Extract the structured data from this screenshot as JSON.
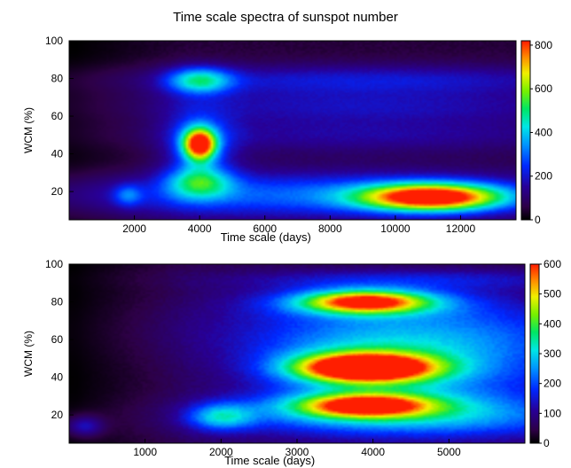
{
  "figure": {
    "title": "Time scale spectra of sunspot number"
  },
  "chart_data": [
    {
      "type": "heatmap",
      "title": "",
      "xlabel": "Time scale (days)",
      "ylabel": "WCM (%)",
      "xlim": [
        0,
        13700
      ],
      "ylim": [
        5,
        100
      ],
      "xticks": [
        2000,
        4000,
        6000,
        8000,
        10000,
        12000
      ],
      "yticks": [
        20,
        40,
        60,
        80,
        100
      ],
      "colorbar": {
        "min": 0,
        "max": 820,
        "ticks": [
          0,
          200,
          400,
          600,
          800
        ]
      },
      "blobs": [
        {
          "x": 11100,
          "y": 17,
          "sx": 1500,
          "sy": 5,
          "value": 760
        },
        {
          "x": 7500,
          "y": 18,
          "sx": 6000,
          "sy": 9,
          "value": 250
        },
        {
          "x": 4000,
          "y": 45,
          "sx": 350,
          "sy": 6,
          "value": 720
        },
        {
          "x": 4000,
          "y": 45,
          "sx": 800,
          "sy": 14,
          "value": 180
        },
        {
          "x": 4000,
          "y": 79,
          "sx": 700,
          "sy": 5,
          "value": 340
        },
        {
          "x": 4000,
          "y": 25,
          "sx": 700,
          "sy": 6,
          "value": 300
        },
        {
          "x": 9000,
          "y": 79,
          "sx": 5500,
          "sy": 6,
          "value": 160
        },
        {
          "x": 9000,
          "y": 65,
          "sx": 5500,
          "sy": 6,
          "value": 120
        },
        {
          "x": 9000,
          "y": 50,
          "sx": 5500,
          "sy": 7,
          "value": 110
        },
        {
          "x": 1800,
          "y": 18,
          "sx": 300,
          "sy": 4,
          "value": 160
        }
      ]
    },
    {
      "type": "heatmap",
      "title": "",
      "xlabel": "Time scale (days)",
      "ylabel": "WCM (%)",
      "xlim": [
        0,
        6000
      ],
      "ylim": [
        5,
        100
      ],
      "xticks": [
        1000,
        2000,
        3000,
        4000,
        5000
      ],
      "yticks": [
        20,
        40,
        60,
        80,
        100
      ],
      "colorbar": {
        "min": 0,
        "max": 600,
        "ticks": [
          0,
          100,
          200,
          300,
          400,
          500,
          600
        ]
      },
      "blobs": [
        {
          "x": 3900,
          "y": 45,
          "sx": 600,
          "sy": 5,
          "value": 620
        },
        {
          "x": 3900,
          "y": 45,
          "sx": 1000,
          "sy": 11,
          "value": 160
        },
        {
          "x": 3900,
          "y": 80,
          "sx": 550,
          "sy": 4,
          "value": 420
        },
        {
          "x": 3900,
          "y": 25,
          "sx": 550,
          "sy": 4,
          "value": 380
        },
        {
          "x": 3900,
          "y": 80,
          "sx": 1000,
          "sy": 6,
          "value": 160
        },
        {
          "x": 3900,
          "y": 25,
          "sx": 1000,
          "sy": 6,
          "value": 160
        },
        {
          "x": 4500,
          "y": 18,
          "sx": 1800,
          "sy": 8,
          "value": 170
        },
        {
          "x": 2000,
          "y": 19,
          "sx": 300,
          "sy": 5,
          "value": 200
        },
        {
          "x": 4300,
          "y": 65,
          "sx": 1800,
          "sy": 12,
          "value": 120
        },
        {
          "x": 5000,
          "y": 45,
          "sx": 1500,
          "sy": 20,
          "value": 130
        },
        {
          "x": 4500,
          "y": 92,
          "sx": 1800,
          "sy": 4,
          "value": 90
        },
        {
          "x": 200,
          "y": 14,
          "sx": 180,
          "sy": 4,
          "value": 120
        }
      ]
    }
  ]
}
